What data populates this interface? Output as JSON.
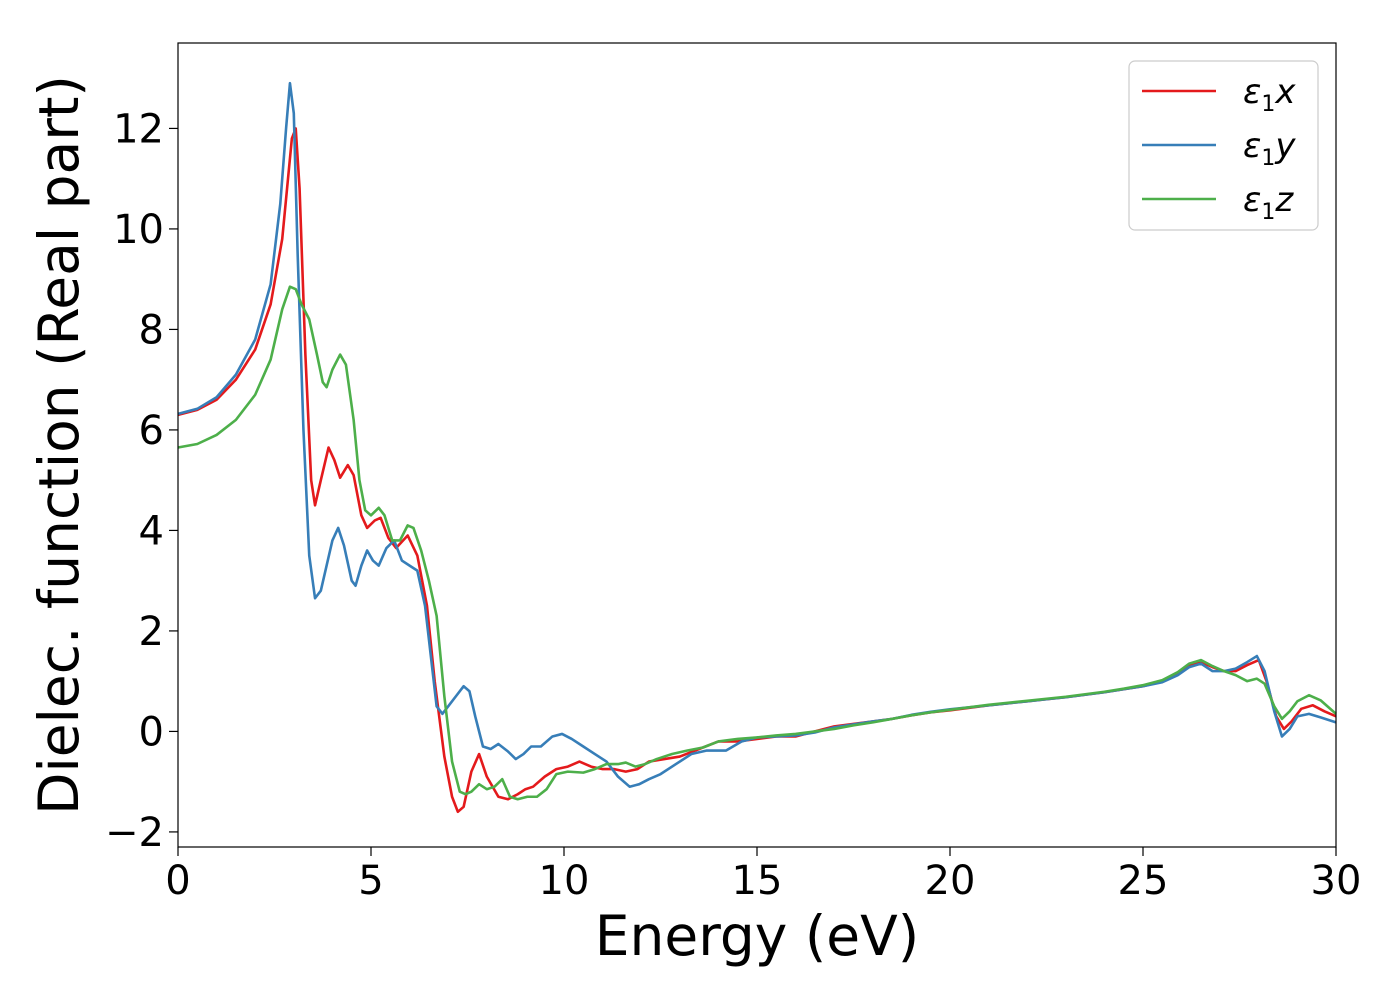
{
  "chart_data": {
    "type": "line",
    "title": "",
    "xlabel": "Energy (eV)",
    "ylabel": "Dielec. function (Real part)",
    "xlim": [
      0,
      30
    ],
    "ylim": [
      -2.3,
      13.7
    ],
    "xticks": [
      0,
      5,
      10,
      15,
      20,
      25,
      30
    ],
    "xtick_labels": [
      "0",
      "5",
      "10",
      "15",
      "20",
      "25",
      "30"
    ],
    "yticks": [
      -2,
      0,
      2,
      4,
      6,
      8,
      10,
      12
    ],
    "ytick_labels": [
      "−2",
      "0",
      "2",
      "4",
      "6",
      "8",
      "10",
      "12"
    ],
    "grid": false,
    "legend_position": "top-right",
    "series": [
      {
        "name": "ε1x",
        "legend_base": "ε",
        "legend_sub": "1",
        "legend_var": "x",
        "color": "#e41a1c",
        "points": [
          [
            0,
            6.3
          ],
          [
            0.5,
            6.4
          ],
          [
            1.0,
            6.6
          ],
          [
            1.5,
            7.0
          ],
          [
            2.0,
            7.6
          ],
          [
            2.4,
            8.5
          ],
          [
            2.7,
            9.8
          ],
          [
            2.85,
            11.0
          ],
          [
            2.95,
            11.8
          ],
          [
            3.05,
            12.0
          ],
          [
            3.15,
            10.8
          ],
          [
            3.3,
            7.5
          ],
          [
            3.45,
            5.0
          ],
          [
            3.55,
            4.5
          ],
          [
            3.7,
            5.0
          ],
          [
            3.9,
            5.65
          ],
          [
            4.05,
            5.4
          ],
          [
            4.2,
            5.05
          ],
          [
            4.4,
            5.3
          ],
          [
            4.55,
            5.1
          ],
          [
            4.75,
            4.3
          ],
          [
            4.9,
            4.05
          ],
          [
            5.1,
            4.2
          ],
          [
            5.25,
            4.25
          ],
          [
            5.45,
            3.85
          ],
          [
            5.65,
            3.65
          ],
          [
            5.95,
            3.9
          ],
          [
            6.2,
            3.5
          ],
          [
            6.45,
            2.5
          ],
          [
            6.65,
            1.0
          ],
          [
            6.9,
            -0.5
          ],
          [
            7.1,
            -1.3
          ],
          [
            7.25,
            -1.6
          ],
          [
            7.4,
            -1.5
          ],
          [
            7.6,
            -0.8
          ],
          [
            7.8,
            -0.45
          ],
          [
            8.0,
            -0.9
          ],
          [
            8.3,
            -1.3
          ],
          [
            8.55,
            -1.35
          ],
          [
            8.8,
            -1.25
          ],
          [
            9.0,
            -1.15
          ],
          [
            9.2,
            -1.1
          ],
          [
            9.5,
            -0.9
          ],
          [
            9.8,
            -0.75
          ],
          [
            10.1,
            -0.7
          ],
          [
            10.4,
            -0.6
          ],
          [
            10.7,
            -0.7
          ],
          [
            11.0,
            -0.75
          ],
          [
            11.3,
            -0.75
          ],
          [
            11.6,
            -0.8
          ],
          [
            11.9,
            -0.75
          ],
          [
            12.2,
            -0.6
          ],
          [
            12.6,
            -0.55
          ],
          [
            13.0,
            -0.5
          ],
          [
            13.5,
            -0.35
          ],
          [
            14.0,
            -0.2
          ],
          [
            14.5,
            -0.2
          ],
          [
            15.0,
            -0.15
          ],
          [
            15.5,
            -0.1
          ],
          [
            16.0,
            -0.1
          ],
          [
            16.5,
            0.0
          ],
          [
            17.0,
            0.1
          ],
          [
            17.5,
            0.15
          ],
          [
            18.0,
            0.2
          ],
          [
            18.5,
            0.25
          ],
          [
            19.0,
            0.32
          ],
          [
            19.5,
            0.38
          ],
          [
            20.0,
            0.42
          ],
          [
            20.5,
            0.47
          ],
          [
            21.0,
            0.52
          ],
          [
            21.5,
            0.56
          ],
          [
            22.0,
            0.6
          ],
          [
            22.5,
            0.64
          ],
          [
            23.0,
            0.68
          ],
          [
            23.5,
            0.73
          ],
          [
            24.0,
            0.78
          ],
          [
            24.5,
            0.84
          ],
          [
            25.0,
            0.9
          ],
          [
            25.5,
            1.0
          ],
          [
            25.9,
            1.15
          ],
          [
            26.2,
            1.3
          ],
          [
            26.5,
            1.38
          ],
          [
            26.8,
            1.28
          ],
          [
            27.1,
            1.2
          ],
          [
            27.4,
            1.2
          ],
          [
            27.7,
            1.32
          ],
          [
            28.0,
            1.42
          ],
          [
            28.2,
            1.0
          ],
          [
            28.45,
            0.3
          ],
          [
            28.65,
            0.05
          ],
          [
            28.85,
            0.2
          ],
          [
            29.1,
            0.45
          ],
          [
            29.4,
            0.52
          ],
          [
            29.7,
            0.4
          ],
          [
            30.0,
            0.3
          ]
        ]
      },
      {
        "name": "ε1y",
        "legend_base": "ε",
        "legend_sub": "1",
        "legend_var": "y",
        "color": "#377eb8",
        "points": [
          [
            0,
            6.32
          ],
          [
            0.5,
            6.42
          ],
          [
            1.0,
            6.65
          ],
          [
            1.5,
            7.1
          ],
          [
            2.0,
            7.8
          ],
          [
            2.4,
            8.9
          ],
          [
            2.65,
            10.5
          ],
          [
            2.8,
            12.0
          ],
          [
            2.9,
            12.9
          ],
          [
            3.0,
            12.3
          ],
          [
            3.1,
            9.5
          ],
          [
            3.25,
            6.0
          ],
          [
            3.4,
            3.5
          ],
          [
            3.55,
            2.65
          ],
          [
            3.7,
            2.8
          ],
          [
            3.85,
            3.3
          ],
          [
            4.0,
            3.8
          ],
          [
            4.15,
            4.05
          ],
          [
            4.3,
            3.7
          ],
          [
            4.5,
            3.0
          ],
          [
            4.6,
            2.9
          ],
          [
            4.75,
            3.3
          ],
          [
            4.9,
            3.6
          ],
          [
            5.05,
            3.4
          ],
          [
            5.2,
            3.3
          ],
          [
            5.4,
            3.65
          ],
          [
            5.6,
            3.8
          ],
          [
            5.8,
            3.4
          ],
          [
            6.0,
            3.3
          ],
          [
            6.2,
            3.2
          ],
          [
            6.4,
            2.5
          ],
          [
            6.55,
            1.5
          ],
          [
            6.7,
            0.5
          ],
          [
            6.85,
            0.35
          ],
          [
            7.0,
            0.5
          ],
          [
            7.2,
            0.7
          ],
          [
            7.4,
            0.9
          ],
          [
            7.55,
            0.8
          ],
          [
            7.7,
            0.3
          ],
          [
            7.9,
            -0.3
          ],
          [
            8.1,
            -0.35
          ],
          [
            8.3,
            -0.25
          ],
          [
            8.55,
            -0.4
          ],
          [
            8.75,
            -0.55
          ],
          [
            8.95,
            -0.45
          ],
          [
            9.15,
            -0.3
          ],
          [
            9.4,
            -0.3
          ],
          [
            9.7,
            -0.1
          ],
          [
            9.95,
            -0.05
          ],
          [
            10.2,
            -0.15
          ],
          [
            10.5,
            -0.3
          ],
          [
            10.8,
            -0.45
          ],
          [
            11.1,
            -0.6
          ],
          [
            11.4,
            -0.9
          ],
          [
            11.7,
            -1.1
          ],
          [
            11.95,
            -1.05
          ],
          [
            12.2,
            -0.95
          ],
          [
            12.5,
            -0.85
          ],
          [
            12.9,
            -0.65
          ],
          [
            13.3,
            -0.45
          ],
          [
            13.7,
            -0.38
          ],
          [
            14.2,
            -0.38
          ],
          [
            14.6,
            -0.2
          ],
          [
            15.0,
            -0.12
          ],
          [
            15.5,
            -0.1
          ],
          [
            16.0,
            -0.08
          ],
          [
            16.5,
            -0.02
          ],
          [
            17.0,
            0.08
          ],
          [
            17.5,
            0.14
          ],
          [
            18.0,
            0.2
          ],
          [
            18.5,
            0.25
          ],
          [
            19.0,
            0.33
          ],
          [
            19.5,
            0.39
          ],
          [
            20.0,
            0.44
          ],
          [
            20.5,
            0.48
          ],
          [
            21.0,
            0.52
          ],
          [
            21.5,
            0.56
          ],
          [
            22.0,
            0.6
          ],
          [
            22.5,
            0.64
          ],
          [
            23.0,
            0.68
          ],
          [
            23.5,
            0.73
          ],
          [
            24.0,
            0.78
          ],
          [
            24.5,
            0.84
          ],
          [
            25.0,
            0.9
          ],
          [
            25.5,
            0.98
          ],
          [
            25.9,
            1.12
          ],
          [
            26.2,
            1.28
          ],
          [
            26.5,
            1.35
          ],
          [
            26.8,
            1.2
          ],
          [
            27.1,
            1.2
          ],
          [
            27.4,
            1.25
          ],
          [
            27.7,
            1.38
          ],
          [
            27.95,
            1.5
          ],
          [
            28.15,
            1.2
          ],
          [
            28.4,
            0.4
          ],
          [
            28.6,
            -0.1
          ],
          [
            28.8,
            0.05
          ],
          [
            29.0,
            0.3
          ],
          [
            29.3,
            0.35
          ],
          [
            29.6,
            0.28
          ],
          [
            30.0,
            0.18
          ]
        ]
      },
      {
        "name": "ε1z",
        "legend_base": "ε",
        "legend_sub": "1",
        "legend_var": "z",
        "color": "#4daf4a",
        "points": [
          [
            0,
            5.65
          ],
          [
            0.5,
            5.72
          ],
          [
            1.0,
            5.9
          ],
          [
            1.5,
            6.2
          ],
          [
            2.0,
            6.7
          ],
          [
            2.4,
            7.4
          ],
          [
            2.7,
            8.4
          ],
          [
            2.9,
            8.85
          ],
          [
            3.05,
            8.8
          ],
          [
            3.2,
            8.5
          ],
          [
            3.4,
            8.2
          ],
          [
            3.6,
            7.5
          ],
          [
            3.75,
            6.95
          ],
          [
            3.85,
            6.85
          ],
          [
            4.0,
            7.2
          ],
          [
            4.2,
            7.5
          ],
          [
            4.35,
            7.3
          ],
          [
            4.55,
            6.2
          ],
          [
            4.7,
            5.0
          ],
          [
            4.85,
            4.4
          ],
          [
            5.0,
            4.3
          ],
          [
            5.2,
            4.45
          ],
          [
            5.35,
            4.3
          ],
          [
            5.55,
            3.8
          ],
          [
            5.75,
            3.8
          ],
          [
            5.95,
            4.1
          ],
          [
            6.1,
            4.05
          ],
          [
            6.3,
            3.6
          ],
          [
            6.5,
            3.0
          ],
          [
            6.7,
            2.3
          ],
          [
            6.9,
            0.7
          ],
          [
            7.1,
            -0.6
          ],
          [
            7.3,
            -1.2
          ],
          [
            7.45,
            -1.25
          ],
          [
            7.6,
            -1.2
          ],
          [
            7.8,
            -1.05
          ],
          [
            8.0,
            -1.15
          ],
          [
            8.2,
            -1.1
          ],
          [
            8.4,
            -0.95
          ],
          [
            8.6,
            -1.3
          ],
          [
            8.8,
            -1.35
          ],
          [
            9.05,
            -1.3
          ],
          [
            9.3,
            -1.3
          ],
          [
            9.55,
            -1.15
          ],
          [
            9.8,
            -0.85
          ],
          [
            10.1,
            -0.8
          ],
          [
            10.5,
            -0.82
          ],
          [
            10.8,
            -0.75
          ],
          [
            11.1,
            -0.65
          ],
          [
            11.4,
            -0.65
          ],
          [
            11.6,
            -0.62
          ],
          [
            11.85,
            -0.7
          ],
          [
            12.1,
            -0.65
          ],
          [
            12.4,
            -0.55
          ],
          [
            12.8,
            -0.45
          ],
          [
            13.2,
            -0.38
          ],
          [
            13.6,
            -0.32
          ],
          [
            14.0,
            -0.2
          ],
          [
            14.5,
            -0.15
          ],
          [
            15.0,
            -0.12
          ],
          [
            15.5,
            -0.08
          ],
          [
            16.0,
            -0.05
          ],
          [
            16.5,
            0.0
          ],
          [
            17.0,
            0.05
          ],
          [
            17.5,
            0.12
          ],
          [
            18.0,
            0.18
          ],
          [
            18.5,
            0.25
          ],
          [
            19.0,
            0.32
          ],
          [
            19.5,
            0.38
          ],
          [
            20.0,
            0.43
          ],
          [
            20.5,
            0.48
          ],
          [
            21.0,
            0.53
          ],
          [
            21.5,
            0.57
          ],
          [
            22.0,
            0.61
          ],
          [
            22.5,
            0.65
          ],
          [
            23.0,
            0.69
          ],
          [
            23.5,
            0.74
          ],
          [
            24.0,
            0.79
          ],
          [
            24.5,
            0.85
          ],
          [
            25.0,
            0.92
          ],
          [
            25.5,
            1.02
          ],
          [
            25.9,
            1.18
          ],
          [
            26.2,
            1.35
          ],
          [
            26.5,
            1.42
          ],
          [
            26.8,
            1.3
          ],
          [
            27.1,
            1.2
          ],
          [
            27.4,
            1.12
          ],
          [
            27.7,
            1.0
          ],
          [
            27.95,
            1.05
          ],
          [
            28.15,
            0.95
          ],
          [
            28.4,
            0.5
          ],
          [
            28.6,
            0.25
          ],
          [
            28.8,
            0.4
          ],
          [
            29.0,
            0.6
          ],
          [
            29.3,
            0.72
          ],
          [
            29.6,
            0.62
          ],
          [
            30.0,
            0.35
          ]
        ]
      }
    ]
  }
}
